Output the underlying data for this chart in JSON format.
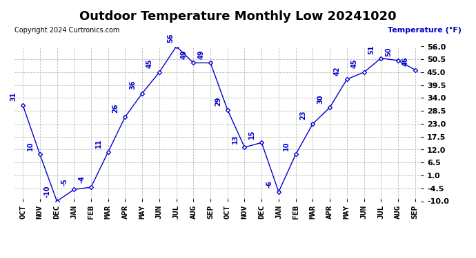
{
  "title": "Outdoor Temperature Monthly Low 20241020",
  "copyright": "Copyright 2024 Curtronics.com",
  "ylabel": "Temperature (°F)",
  "months": [
    "OCT",
    "NOV",
    "DEC",
    "JAN",
    "FEB",
    "MAR",
    "APR",
    "MAY",
    "JUN",
    "JUL",
    "AUG",
    "SEP",
    "OCT",
    "NOV",
    "DEC",
    "JAN",
    "FEB",
    "MAR",
    "APR",
    "MAY",
    "JUN",
    "JUL",
    "AUG",
    "SEP"
  ],
  "values": [
    31,
    10,
    -10,
    -5,
    -4,
    11,
    26,
    36,
    45,
    56,
    49,
    49,
    29,
    13,
    15,
    -6,
    10,
    23,
    30,
    42,
    45,
    51,
    50,
    46
  ],
  "ylim": [
    -10.0,
    56.0
  ],
  "yticks": [
    56.0,
    50.5,
    45.0,
    39.5,
    34.0,
    28.5,
    23.0,
    17.5,
    12.0,
    6.5,
    1.0,
    -4.5,
    -10.0
  ],
  "line_color": "#0000cc",
  "marker": "D",
  "marker_size": 3,
  "grid_color": "#bbbbbb",
  "background_color": "#ffffff",
  "title_fontsize": 13,
  "label_fontsize": 8,
  "tick_fontsize": 8,
  "annotation_fontsize": 7,
  "annotation_color": "#0000cc",
  "copyright_color": "#000000",
  "ylabel_color": "#0000cc"
}
